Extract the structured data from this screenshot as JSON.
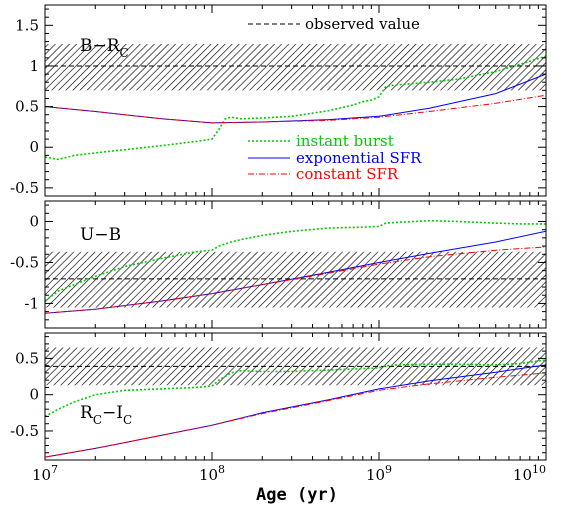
{
  "chart_data": {
    "type": "line",
    "xlabel": "Age (yr)",
    "xscale": "log",
    "xlim": [
      10000000.0,
      10000000000.0
    ],
    "x_ticks": [
      {
        "base": "10",
        "exp": "7"
      },
      {
        "base": "10",
        "exp": "8"
      },
      {
        "base": "10",
        "exp": "9"
      },
      {
        "base": "10",
        "exp": "10"
      }
    ],
    "legend": {
      "entries": [
        {
          "name": "instant burst",
          "color": "#00cc00",
          "style": "dotted"
        },
        {
          "name": "exponential SFR",
          "color": "#0000ff",
          "style": "solid"
        },
        {
          "name": "constant SFR",
          "color": "#ff0000",
          "style": "dash-dot"
        }
      ],
      "observed_label": "observed value"
    },
    "panels": [
      {
        "id": "b-rc",
        "label_main": "B−R",
        "label_sub": "C",
        "ylim": [
          -0.6,
          1.75
        ],
        "yticks": [
          "-0.5",
          "0",
          "0.5",
          "1",
          "1.5"
        ],
        "observed": {
          "value": 1.0,
          "low": 0.7,
          "high": 1.27
        },
        "series": [
          {
            "name": "instant burst",
            "x": [
              10000000.0,
              12000000.0,
              15000000.0,
              20000000.0,
              30000000.0,
              50000000.0,
              80000000.0,
              100000000.0,
              110000000.0,
              120000000.0,
              130000000.0,
              150000000.0,
              200000000.0,
              300000000.0,
              500000000.0,
              700000000.0,
              800000000.0,
              900000000.0,
              1000000000.0,
              1100000000.0,
              1300000000.0,
              2000000000.0,
              3000000000.0,
              5000000000.0,
              7000000000.0,
              10000000000.0
            ],
            "y": [
              -0.12,
              -0.15,
              -0.1,
              -0.07,
              -0.03,
              0.02,
              0.07,
              0.1,
              0.22,
              0.35,
              0.37,
              0.35,
              0.36,
              0.38,
              0.45,
              0.52,
              0.56,
              0.58,
              0.62,
              0.75,
              0.77,
              0.8,
              0.84,
              0.93,
              1.02,
              1.12
            ]
          },
          {
            "name": "exponential SFR",
            "x": [
              10000000.0,
              20000000.0,
              50000000.0,
              100000000.0,
              200000000.0,
              500000000.0,
              1000000000.0,
              2000000000.0,
              5000000000.0,
              10000000000.0
            ],
            "y": [
              0.5,
              0.44,
              0.35,
              0.3,
              0.31,
              0.34,
              0.38,
              0.48,
              0.66,
              0.9
            ]
          },
          {
            "name": "constant SFR",
            "x": [
              10000000.0,
              20000000.0,
              50000000.0,
              100000000.0,
              200000000.0,
              500000000.0,
              1000000000.0,
              2000000000.0,
              5000000000.0,
              10000000000.0
            ],
            "y": [
              0.5,
              0.44,
              0.35,
              0.3,
              0.31,
              0.33,
              0.37,
              0.44,
              0.54,
              0.64
            ]
          }
        ]
      },
      {
        "id": "u-b",
        "label_main": "U−B",
        "label_sub": "",
        "ylim": [
          -1.3,
          0.25
        ],
        "yticks": [
          "-1",
          "-0.5",
          "0"
        ],
        "observed": {
          "value": -0.7,
          "low": -1.05,
          "high": -0.37
        },
        "series": [
          {
            "name": "instant burst",
            "x": [
              10000000.0,
              12000000.0,
              15000000.0,
              20000000.0,
              30000000.0,
              50000000.0,
              80000000.0,
              100000000.0,
              110000000.0,
              130000000.0,
              150000000.0,
              200000000.0,
              300000000.0,
              500000000.0,
              800000000.0,
              1000000000.0,
              1100000000.0,
              1300000000.0,
              2000000000.0,
              3000000000.0,
              5000000000.0,
              7000000000.0,
              10000000000.0
            ],
            "y": [
              -0.97,
              -0.85,
              -0.77,
              -0.67,
              -0.55,
              -0.45,
              -0.37,
              -0.35,
              -0.3,
              -0.25,
              -0.22,
              -0.17,
              -0.12,
              -0.08,
              -0.07,
              -0.06,
              -0.02,
              -0.01,
              0.01,
              0.0,
              -0.02,
              -0.03,
              -0.03
            ]
          },
          {
            "name": "exponential SFR",
            "x": [
              10000000.0,
              20000000.0,
              50000000.0,
              100000000.0,
              200000000.0,
              500000000.0,
              1000000000.0,
              2000000000.0,
              5000000000.0,
              10000000000.0
            ],
            "y": [
              -1.12,
              -1.07,
              -0.97,
              -0.88,
              -0.77,
              -0.62,
              -0.5,
              -0.39,
              -0.25,
              -0.12
            ]
          },
          {
            "name": "constant SFR",
            "x": [
              10000000.0,
              20000000.0,
              50000000.0,
              100000000.0,
              200000000.0,
              500000000.0,
              1000000000.0,
              2000000000.0,
              5000000000.0,
              10000000000.0
            ],
            "y": [
              -1.12,
              -1.07,
              -0.97,
              -0.88,
              -0.77,
              -0.63,
              -0.52,
              -0.43,
              -0.35,
              -0.31
            ]
          }
        ]
      },
      {
        "id": "rc-ic",
        "label_main": "R",
        "label_sub": "C",
        "label_main2": "−I",
        "label_sub2": "C",
        "ylim": [
          -0.9,
          0.85
        ],
        "yticks": [
          "-0.5",
          "0",
          "0.5"
        ],
        "observed": {
          "value": 0.39,
          "low": 0.13,
          "high": 0.65
        },
        "series": [
          {
            "name": "instant burst",
            "x": [
              10000000.0,
              12000000.0,
              15000000.0,
              20000000.0,
              30000000.0,
              50000000.0,
              80000000.0,
              100000000.0,
              110000000.0,
              130000000.0,
              150000000.0,
              200000000.0,
              300000000.0,
              500000000.0,
              800000000.0,
              1000000000.0,
              1100000000.0,
              1300000000.0,
              2000000000.0,
              3000000000.0,
              5000000000.0,
              7000000000.0,
              10000000000.0
            ],
            "y": [
              -0.3,
              -0.2,
              -0.1,
              0.0,
              0.06,
              0.08,
              0.1,
              0.12,
              0.2,
              0.3,
              0.33,
              0.32,
              0.32,
              0.34,
              0.36,
              0.37,
              0.4,
              0.41,
              0.42,
              0.42,
              0.41,
              0.43,
              0.48
            ]
          },
          {
            "name": "exponential SFR",
            "x": [
              10000000.0,
              20000000.0,
              50000000.0,
              100000000.0,
              200000000.0,
              500000000.0,
              1000000000.0,
              2000000000.0,
              5000000000.0,
              10000000000.0
            ],
            "y": [
              -0.86,
              -0.74,
              -0.56,
              -0.42,
              -0.25,
              -0.07,
              0.08,
              0.19,
              0.31,
              0.41
            ]
          },
          {
            "name": "constant SFR",
            "x": [
              10000000.0,
              20000000.0,
              50000000.0,
              100000000.0,
              200000000.0,
              500000000.0,
              1000000000.0,
              2000000000.0,
              5000000000.0,
              10000000000.0
            ],
            "y": [
              -0.86,
              -0.74,
              -0.56,
              -0.42,
              -0.26,
              -0.08,
              0.06,
              0.15,
              0.24,
              0.3
            ]
          }
        ]
      }
    ]
  }
}
